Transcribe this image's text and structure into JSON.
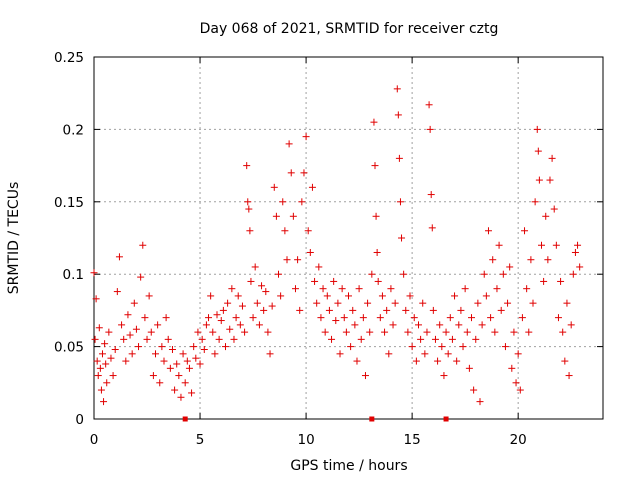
{
  "chart_data": {
    "type": "scatter",
    "title": "Day 068 of 2021, SRMTID for receiver cztg",
    "xlabel": "GPS time / hours",
    "ylabel": "SRMTID / TECUs",
    "xlim": [
      0,
      24
    ],
    "ylim": [
      0,
      0.25
    ],
    "xticks": [
      0,
      5,
      10,
      15,
      20
    ],
    "xtick_labels": [
      "0",
      "5",
      "10",
      "15",
      "20"
    ],
    "yticks": [
      0,
      0.05,
      0.1,
      0.15,
      0.2,
      0.25
    ],
    "ytick_labels": [
      "0",
      "0.05",
      "0.1",
      "0.15",
      "0.2",
      "0.25"
    ],
    "grid": true,
    "marker": "+",
    "color": "#e00000",
    "baseline_markers_x": [
      4.3,
      13.1,
      16.6
    ],
    "series": [
      {
        "values": [
          [
            0.0,
            0.101
          ],
          [
            0.05,
            0.055
          ],
          [
            0.1,
            0.083
          ],
          [
            0.15,
            0.04
          ],
          [
            0.2,
            0.03
          ],
          [
            0.25,
            0.063
          ],
          [
            0.3,
            0.035
          ],
          [
            0.35,
            0.02
          ],
          [
            0.4,
            0.045
          ],
          [
            0.45,
            0.012
          ],
          [
            0.5,
            0.052
          ],
          [
            0.55,
            0.038
          ],
          [
            0.6,
            0.025
          ],
          [
            0.7,
            0.06
          ],
          [
            0.8,
            0.042
          ],
          [
            0.9,
            0.03
          ],
          [
            1.0,
            0.048
          ],
          [
            1.1,
            0.088
          ],
          [
            1.2,
            0.112
          ],
          [
            1.3,
            0.065
          ],
          [
            1.4,
            0.055
          ],
          [
            1.5,
            0.04
          ],
          [
            1.6,
            0.072
          ],
          [
            1.7,
            0.058
          ],
          [
            1.8,
            0.045
          ],
          [
            1.9,
            0.08
          ],
          [
            2.0,
            0.062
          ],
          [
            2.1,
            0.05
          ],
          [
            2.2,
            0.098
          ],
          [
            2.3,
            0.12
          ],
          [
            2.4,
            0.07
          ],
          [
            2.5,
            0.055
          ],
          [
            2.6,
            0.085
          ],
          [
            2.7,
            0.06
          ],
          [
            2.8,
            0.03
          ],
          [
            2.9,
            0.045
          ],
          [
            3.0,
            0.065
          ],
          [
            3.1,
            0.025
          ],
          [
            3.2,
            0.05
          ],
          [
            3.3,
            0.04
          ],
          [
            3.4,
            0.07
          ],
          [
            3.5,
            0.055
          ],
          [
            3.6,
            0.035
          ],
          [
            3.7,
            0.048
          ],
          [
            3.8,
            0.02
          ],
          [
            3.9,
            0.038
          ],
          [
            4.0,
            0.03
          ],
          [
            4.1,
            0.015
          ],
          [
            4.2,
            0.045
          ],
          [
            4.3,
            0.025
          ],
          [
            4.4,
            0.04
          ],
          [
            4.5,
            0.035
          ],
          [
            4.6,
            0.018
          ],
          [
            4.7,
            0.05
          ],
          [
            4.8,
            0.042
          ],
          [
            4.9,
            0.06
          ],
          [
            5.0,
            0.038
          ],
          [
            5.1,
            0.055
          ],
          [
            5.2,
            0.048
          ],
          [
            5.3,
            0.065
          ],
          [
            5.4,
            0.07
          ],
          [
            5.5,
            0.085
          ],
          [
            5.6,
            0.06
          ],
          [
            5.7,
            0.045
          ],
          [
            5.8,
            0.072
          ],
          [
            5.9,
            0.055
          ],
          [
            6.0,
            0.068
          ],
          [
            6.1,
            0.075
          ],
          [
            6.2,
            0.05
          ],
          [
            6.3,
            0.08
          ],
          [
            6.4,
            0.062
          ],
          [
            6.5,
            0.09
          ],
          [
            6.6,
            0.055
          ],
          [
            6.7,
            0.07
          ],
          [
            6.8,
            0.085
          ],
          [
            6.9,
            0.065
          ],
          [
            7.0,
            0.078
          ],
          [
            7.1,
            0.06
          ],
          [
            7.2,
            0.175
          ],
          [
            7.25,
            0.15
          ],
          [
            7.3,
            0.145
          ],
          [
            7.35,
            0.13
          ],
          [
            7.4,
            0.095
          ],
          [
            7.5,
            0.07
          ],
          [
            7.6,
            0.105
          ],
          [
            7.7,
            0.08
          ],
          [
            7.8,
            0.065
          ],
          [
            7.9,
            0.092
          ],
          [
            8.0,
            0.075
          ],
          [
            8.1,
            0.088
          ],
          [
            8.2,
            0.06
          ],
          [
            8.3,
            0.045
          ],
          [
            8.4,
            0.078
          ],
          [
            8.5,
            0.16
          ],
          [
            8.6,
            0.14
          ],
          [
            8.7,
            0.1
          ],
          [
            8.8,
            0.085
          ],
          [
            8.9,
            0.15
          ],
          [
            9.0,
            0.13
          ],
          [
            9.1,
            0.11
          ],
          [
            9.2,
            0.19
          ],
          [
            9.3,
            0.17
          ],
          [
            9.4,
            0.14
          ],
          [
            9.5,
            0.09
          ],
          [
            9.6,
            0.11
          ],
          [
            9.7,
            0.075
          ],
          [
            9.8,
            0.15
          ],
          [
            9.9,
            0.17
          ],
          [
            10.0,
            0.195
          ],
          [
            10.1,
            0.13
          ],
          [
            10.2,
            0.115
          ],
          [
            10.3,
            0.16
          ],
          [
            10.4,
            0.095
          ],
          [
            10.5,
            0.08
          ],
          [
            10.6,
            0.105
          ],
          [
            10.7,
            0.07
          ],
          [
            10.8,
            0.09
          ],
          [
            10.9,
            0.06
          ],
          [
            11.0,
            0.085
          ],
          [
            11.1,
            0.075
          ],
          [
            11.2,
            0.055
          ],
          [
            11.3,
            0.095
          ],
          [
            11.4,
            0.068
          ],
          [
            11.5,
            0.08
          ],
          [
            11.6,
            0.045
          ],
          [
            11.7,
            0.09
          ],
          [
            11.8,
            0.07
          ],
          [
            11.9,
            0.06
          ],
          [
            12.0,
            0.085
          ],
          [
            12.1,
            0.05
          ],
          [
            12.2,
            0.075
          ],
          [
            12.3,
            0.065
          ],
          [
            12.4,
            0.04
          ],
          [
            12.5,
            0.09
          ],
          [
            12.6,
            0.055
          ],
          [
            12.7,
            0.07
          ],
          [
            12.8,
            0.03
          ],
          [
            12.9,
            0.08
          ],
          [
            13.0,
            0.06
          ],
          [
            13.1,
            0.1
          ],
          [
            13.2,
            0.205
          ],
          [
            13.25,
            0.175
          ],
          [
            13.3,
            0.14
          ],
          [
            13.35,
            0.115
          ],
          [
            13.4,
            0.095
          ],
          [
            13.5,
            0.07
          ],
          [
            13.6,
            0.085
          ],
          [
            13.7,
            0.06
          ],
          [
            13.8,
            0.075
          ],
          [
            13.9,
            0.045
          ],
          [
            14.0,
            0.09
          ],
          [
            14.1,
            0.065
          ],
          [
            14.2,
            0.08
          ],
          [
            14.3,
            0.228
          ],
          [
            14.35,
            0.21
          ],
          [
            14.4,
            0.18
          ],
          [
            14.45,
            0.15
          ],
          [
            14.5,
            0.125
          ],
          [
            14.6,
            0.1
          ],
          [
            14.7,
            0.075
          ],
          [
            14.8,
            0.06
          ],
          [
            14.9,
            0.085
          ],
          [
            15.0,
            0.05
          ],
          [
            15.1,
            0.07
          ],
          [
            15.2,
            0.04
          ],
          [
            15.3,
            0.065
          ],
          [
            15.4,
            0.055
          ],
          [
            15.5,
            0.08
          ],
          [
            15.6,
            0.045
          ],
          [
            15.7,
            0.06
          ],
          [
            15.8,
            0.217
          ],
          [
            15.85,
            0.2
          ],
          [
            15.9,
            0.155
          ],
          [
            15.95,
            0.132
          ],
          [
            16.0,
            0.075
          ],
          [
            16.1,
            0.055
          ],
          [
            16.2,
            0.04
          ],
          [
            16.3,
            0.065
          ],
          [
            16.4,
            0.05
          ],
          [
            16.5,
            0.03
          ],
          [
            16.6,
            0.06
          ],
          [
            16.7,
            0.045
          ],
          [
            16.8,
            0.07
          ],
          [
            16.9,
            0.055
          ],
          [
            17.0,
            0.085
          ],
          [
            17.1,
            0.04
          ],
          [
            17.2,
            0.065
          ],
          [
            17.3,
            0.075
          ],
          [
            17.4,
            0.05
          ],
          [
            17.5,
            0.09
          ],
          [
            17.6,
            0.06
          ],
          [
            17.7,
            0.035
          ],
          [
            17.8,
            0.07
          ],
          [
            17.9,
            0.02
          ],
          [
            18.0,
            0.055
          ],
          [
            18.1,
            0.08
          ],
          [
            18.2,
            0.012
          ],
          [
            18.3,
            0.065
          ],
          [
            18.4,
            0.1
          ],
          [
            18.5,
            0.085
          ],
          [
            18.6,
            0.13
          ],
          [
            18.7,
            0.07
          ],
          [
            18.8,
            0.11
          ],
          [
            18.9,
            0.06
          ],
          [
            19.0,
            0.09
          ],
          [
            19.1,
            0.12
          ],
          [
            19.2,
            0.075
          ],
          [
            19.3,
            0.1
          ],
          [
            19.4,
            0.05
          ],
          [
            19.5,
            0.08
          ],
          [
            19.6,
            0.105
          ],
          [
            19.7,
            0.035
          ],
          [
            19.8,
            0.06
          ],
          [
            19.9,
            0.025
          ],
          [
            20.0,
            0.045
          ],
          [
            20.1,
            0.02
          ],
          [
            20.2,
            0.07
          ],
          [
            20.3,
            0.13
          ],
          [
            20.4,
            0.09
          ],
          [
            20.5,
            0.06
          ],
          [
            20.6,
            0.11
          ],
          [
            20.7,
            0.08
          ],
          [
            20.8,
            0.15
          ],
          [
            20.9,
            0.2
          ],
          [
            20.95,
            0.185
          ],
          [
            21.0,
            0.165
          ],
          [
            21.1,
            0.12
          ],
          [
            21.2,
            0.095
          ],
          [
            21.3,
            0.14
          ],
          [
            21.4,
            0.11
          ],
          [
            21.5,
            0.165
          ],
          [
            21.6,
            0.18
          ],
          [
            21.7,
            0.145
          ],
          [
            21.8,
            0.12
          ],
          [
            21.9,
            0.07
          ],
          [
            22.0,
            0.095
          ],
          [
            22.1,
            0.06
          ],
          [
            22.2,
            0.04
          ],
          [
            22.3,
            0.08
          ],
          [
            22.4,
            0.03
          ],
          [
            22.5,
            0.065
          ],
          [
            22.6,
            0.1
          ],
          [
            22.7,
            0.115
          ],
          [
            22.8,
            0.12
          ],
          [
            22.9,
            0.105
          ]
        ]
      }
    ]
  }
}
